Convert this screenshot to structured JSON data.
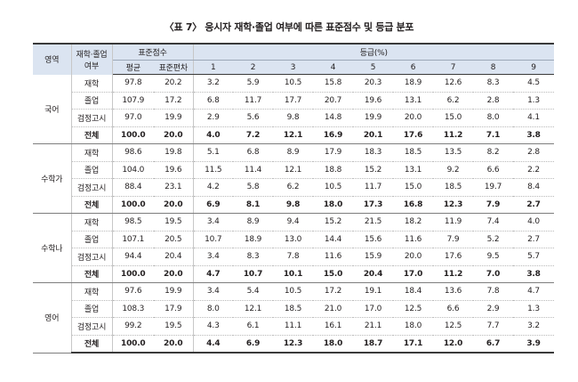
{
  "title": "〈표 7〉 응시자 재학·졸업 여부에 따른 표준점수 및 등급 분포",
  "header": {
    "area": "영역",
    "status_line1": "재학·졸업",
    "status_line2": "여부",
    "standard_score": "표준점수",
    "mean": "평균",
    "stddev": "표준편차",
    "grade": "등급(%)",
    "grades": [
      "1",
      "2",
      "3",
      "4",
      "5",
      "6",
      "7",
      "8",
      "9"
    ]
  },
  "sections": [
    {
      "area": "국어",
      "rows": [
        {
          "status": "재학",
          "mean": "97.8",
          "sd": "20.2",
          "g": [
            "3.2",
            "5.9",
            "10.5",
            "15.8",
            "20.3",
            "18.9",
            "12.6",
            "8.3",
            "4.5"
          ]
        },
        {
          "status": "졸업",
          "mean": "107.9",
          "sd": "17.2",
          "g": [
            "6.8",
            "11.7",
            "17.7",
            "20.7",
            "19.6",
            "13.1",
            "6.2",
            "2.8",
            "1.3"
          ]
        },
        {
          "status": "검정고시",
          "mean": "97.0",
          "sd": "19.9",
          "g": [
            "2.9",
            "5.6",
            "9.8",
            "14.8",
            "19.9",
            "20.0",
            "15.0",
            "8.0",
            "4.1"
          ]
        },
        {
          "status": "전체",
          "mean": "100.0",
          "sd": "20.0",
          "g": [
            "4.0",
            "7.2",
            "12.1",
            "16.9",
            "20.1",
            "17.6",
            "11.2",
            "7.1",
            "3.8"
          ]
        }
      ]
    },
    {
      "area": "수학가",
      "rows": [
        {
          "status": "재학",
          "mean": "98.6",
          "sd": "19.8",
          "g": [
            "5.1",
            "6.8",
            "8.9",
            "17.9",
            "18.3",
            "18.5",
            "13.5",
            "8.2",
            "2.8"
          ]
        },
        {
          "status": "졸업",
          "mean": "104.0",
          "sd": "19.6",
          "g": [
            "11.5",
            "11.4",
            "12.1",
            "18.8",
            "15.2",
            "13.1",
            "9.2",
            "6.6",
            "2.2"
          ]
        },
        {
          "status": "검정고시",
          "mean": "88.4",
          "sd": "23.1",
          "g": [
            "4.2",
            "5.8",
            "6.2",
            "10.5",
            "11.7",
            "15.0",
            "18.5",
            "19.7",
            "8.4"
          ]
        },
        {
          "status": "전체",
          "mean": "100.0",
          "sd": "20.0",
          "g": [
            "6.9",
            "8.1",
            "9.8",
            "18.0",
            "17.3",
            "16.8",
            "12.3",
            "7.9",
            "2.7"
          ]
        }
      ]
    },
    {
      "area": "수학나",
      "rows": [
        {
          "status": "재학",
          "mean": "98.5",
          "sd": "19.5",
          "g": [
            "3.4",
            "8.9",
            "9.4",
            "15.2",
            "21.5",
            "18.2",
            "11.9",
            "7.4",
            "4.0"
          ]
        },
        {
          "status": "졸업",
          "mean": "107.1",
          "sd": "20.5",
          "g": [
            "10.7",
            "18.9",
            "13.0",
            "14.4",
            "15.6",
            "11.6",
            "7.9",
            "5.2",
            "2.7"
          ]
        },
        {
          "status": "검정고시",
          "mean": "94.4",
          "sd": "20.4",
          "g": [
            "3.4",
            "8.3",
            "7.8",
            "11.6",
            "15.9",
            "20.0",
            "17.6",
            "9.5",
            "5.7"
          ]
        },
        {
          "status": "전체",
          "mean": "100.0",
          "sd": "20.0",
          "g": [
            "4.7",
            "10.7",
            "10.1",
            "15.0",
            "20.4",
            "17.0",
            "11.2",
            "7.0",
            "3.8"
          ]
        }
      ]
    },
    {
      "area": "영어",
      "rows": [
        {
          "status": "재학",
          "mean": "97.6",
          "sd": "19.9",
          "g": [
            "3.4",
            "5.4",
            "10.5",
            "17.2",
            "19.1",
            "18.4",
            "13.6",
            "7.8",
            "4.7"
          ]
        },
        {
          "status": "졸업",
          "mean": "108.3",
          "sd": "17.9",
          "g": [
            "8.0",
            "12.1",
            "18.5",
            "21.0",
            "17.0",
            "12.5",
            "6.6",
            "2.9",
            "1.3"
          ]
        },
        {
          "status": "검정고시",
          "mean": "99.2",
          "sd": "19.5",
          "g": [
            "4.3",
            "6.1",
            "11.1",
            "16.1",
            "21.1",
            "18.0",
            "12.5",
            "7.7",
            "3.2"
          ]
        },
        {
          "status": "전체",
          "mean": "100.0",
          "sd": "20.0",
          "g": [
            "4.4",
            "6.9",
            "12.3",
            "18.0",
            "18.7",
            "17.1",
            "12.0",
            "6.7",
            "3.9"
          ]
        }
      ]
    }
  ]
}
